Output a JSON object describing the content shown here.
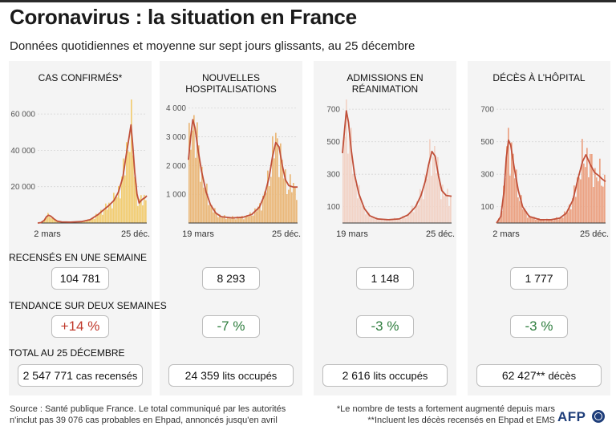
{
  "header": {
    "title": "Coronavirus : la situation en France",
    "subtitle": "Données quotidiennes et moyenne sur sept jours glissants, au 25 décembre"
  },
  "labels": {
    "weekly": "RECENSÉS EN UNE SEMAINE",
    "trend": "TENDANCE SUR DEUX SEMAINES",
    "total": "TOTAL AU 25 DÉCEMBRE"
  },
  "colors": {
    "panel_bg": "#f4f4f4",
    "line": "#c0503a",
    "up": "#c0392b",
    "down": "#2e7d3e"
  },
  "chart_data": [
    {
      "type": "bar",
      "title": "CAS CONFIRMÉS*",
      "bar_color": "#f2cd73",
      "line_color": "#c0503a",
      "x_ticks": [
        "2 mars",
        "25 déc."
      ],
      "y_ticks": [
        20000,
        40000,
        60000
      ],
      "y_tick_labels": [
        "20 000",
        "40 000",
        "60 000"
      ],
      "ylim": [
        0,
        68000
      ],
      "moving_average": [
        [
          0,
          0
        ],
        [
          0.03,
          200
        ],
        [
          0.06,
          1500
        ],
        [
          0.08,
          3500
        ],
        [
          0.1,
          4300
        ],
        [
          0.12,
          3800
        ],
        [
          0.15,
          2200
        ],
        [
          0.18,
          1000
        ],
        [
          0.22,
          600
        ],
        [
          0.3,
          500
        ],
        [
          0.4,
          800
        ],
        [
          0.48,
          1800
        ],
        [
          0.55,
          4500
        ],
        [
          0.6,
          7000
        ],
        [
          0.65,
          9500
        ],
        [
          0.7,
          12500
        ],
        [
          0.74,
          17000
        ],
        [
          0.78,
          25000
        ],
        [
          0.81,
          37000
        ],
        [
          0.84,
          48000
        ],
        [
          0.855,
          54000
        ],
        [
          0.87,
          44000
        ],
        [
          0.89,
          28000
        ],
        [
          0.91,
          16000
        ],
        [
          0.93,
          11000
        ],
        [
          0.95,
          12500
        ],
        [
          0.97,
          13500
        ],
        [
          0.985,
          14000
        ],
        [
          1.0,
          15000
        ]
      ],
      "weekly": "104 781",
      "trend": "+14 %",
      "trend_dir": "up",
      "total_value": "2 547 771",
      "total_unit": "cas recensés"
    },
    {
      "type": "bar",
      "title": "NOUVELLES HOSPITALISATIONS",
      "bar_color": "#eab87a",
      "line_color": "#c0503a",
      "x_ticks": [
        "19 mars",
        "25 déc."
      ],
      "y_ticks": [
        1000,
        2000,
        3000,
        4000
      ],
      "y_tick_labels": [
        "1 000",
        "2 000",
        "3 000",
        "4 000"
      ],
      "ylim": [
        0,
        4300
      ],
      "moving_average": [
        [
          0,
          2200
        ],
        [
          0.02,
          3000
        ],
        [
          0.04,
          3600
        ],
        [
          0.06,
          3300
        ],
        [
          0.09,
          2500
        ],
        [
          0.12,
          1800
        ],
        [
          0.16,
          1100
        ],
        [
          0.2,
          650
        ],
        [
          0.25,
          350
        ],
        [
          0.3,
          220
        ],
        [
          0.4,
          180
        ],
        [
          0.5,
          200
        ],
        [
          0.58,
          300
        ],
        [
          0.65,
          550
        ],
        [
          0.7,
          1000
        ],
        [
          0.74,
          1600
        ],
        [
          0.77,
          2300
        ],
        [
          0.8,
          2800
        ],
        [
          0.83,
          2650
        ],
        [
          0.86,
          2000
        ],
        [
          0.89,
          1500
        ],
        [
          0.92,
          1300
        ],
        [
          0.96,
          1250
        ],
        [
          1.0,
          1250
        ]
      ],
      "weekly": "8 293",
      "trend": "-7 %",
      "trend_dir": "down",
      "total_value": "24 359",
      "total_unit": "lits occupés"
    },
    {
      "type": "bar",
      "title": "ADMISSIONS EN RÉANIMATION",
      "bar_color": "#f2d3c6",
      "line_color": "#c0503a",
      "x_ticks": [
        "19 mars",
        "25 déc."
      ],
      "y_ticks": [
        100,
        300,
        500,
        700
      ],
      "y_tick_labels": [
        "100",
        "300",
        "500",
        "700"
      ],
      "ylim": [
        0,
        760
      ],
      "moving_average": [
        [
          0,
          430
        ],
        [
          0.02,
          580
        ],
        [
          0.035,
          690
        ],
        [
          0.055,
          620
        ],
        [
          0.08,
          450
        ],
        [
          0.11,
          300
        ],
        [
          0.15,
          180
        ],
        [
          0.2,
          90
        ],
        [
          0.25,
          45
        ],
        [
          0.32,
          25
        ],
        [
          0.42,
          20
        ],
        [
          0.52,
          25
        ],
        [
          0.6,
          50
        ],
        [
          0.67,
          100
        ],
        [
          0.72,
          170
        ],
        [
          0.76,
          260
        ],
        [
          0.79,
          360
        ],
        [
          0.82,
          440
        ],
        [
          0.85,
          410
        ],
        [
          0.88,
          290
        ],
        [
          0.91,
          200
        ],
        [
          0.95,
          170
        ],
        [
          1.0,
          165
        ]
      ],
      "weekly": "1 148",
      "trend": "-3 %",
      "trend_dir": "down",
      "total_value": "2 616",
      "total_unit": "lits occupés"
    },
    {
      "type": "bar",
      "title": "DÉCÈS À L’HÔPITAL",
      "bar_color": "#eba283",
      "line_color": "#c0503a",
      "x_ticks": [
        "2 mars",
        "25 déc."
      ],
      "y_ticks": [
        100,
        300,
        500,
        700
      ],
      "y_tick_labels": [
        "100",
        "300",
        "500",
        "700"
      ],
      "ylim": [
        0,
        760
      ],
      "moving_average": [
        [
          0,
          0
        ],
        [
          0.04,
          40
        ],
        [
          0.07,
          200
        ],
        [
          0.09,
          400
        ],
        [
          0.11,
          510
        ],
        [
          0.13,
          480
        ],
        [
          0.16,
          350
        ],
        [
          0.2,
          200
        ],
        [
          0.24,
          100
        ],
        [
          0.3,
          40
        ],
        [
          0.4,
          20
        ],
        [
          0.5,
          20
        ],
        [
          0.58,
          30
        ],
        [
          0.64,
          60
        ],
        [
          0.7,
          140
        ],
        [
          0.75,
          280
        ],
        [
          0.79,
          380
        ],
        [
          0.82,
          420
        ],
        [
          0.86,
          360
        ],
        [
          0.9,
          310
        ],
        [
          0.94,
          290
        ],
        [
          0.97,
          270
        ],
        [
          1.0,
          255
        ]
      ],
      "weekly": "1 777",
      "trend": "-3 %",
      "trend_dir": "down",
      "total_value": "62 427**",
      "total_unit": "décès"
    }
  ],
  "footer": {
    "source_1": "Source : Santé publique France. Le total communiqué par les autorités",
    "source_2": "n'inclut pas 39 076 cas probables en Ehpad, annoncés jusqu'en avril",
    "note_1": "*Le nombre de tests a fortement augmenté depuis mars",
    "note_2": "**Incluent les décès recensés en Ehpad et EMS",
    "logo": "AFP"
  }
}
